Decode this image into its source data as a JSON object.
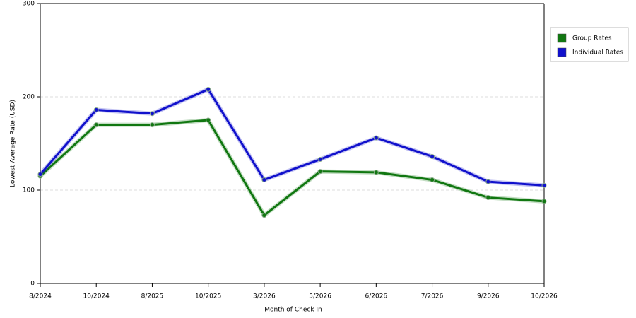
{
  "chart_data": {
    "type": "line",
    "x_label": "Month of Check In",
    "y_label": "Lowest Average Rate (USD)",
    "categories": [
      "8/2024",
      "10/2024",
      "8/2025",
      "10/2025",
      "3/2026",
      "5/2026",
      "6/2026",
      "7/2026",
      "9/2026",
      "10/2026"
    ],
    "series": [
      {
        "name": "Group Rates",
        "color": "#117711",
        "values": [
          115,
          170,
          170,
          175,
          73,
          120,
          119,
          111,
          92,
          88
        ]
      },
      {
        "name": "Individual Rates",
        "color": "#1111cc",
        "values": [
          117,
          186,
          182,
          208,
          111,
          133,
          156,
          136,
          109,
          105
        ]
      }
    ],
    "ylim": [
      0,
      300
    ],
    "yticks": [
      0,
      100,
      200,
      300
    ],
    "grid": true,
    "legend": "top-right"
  }
}
